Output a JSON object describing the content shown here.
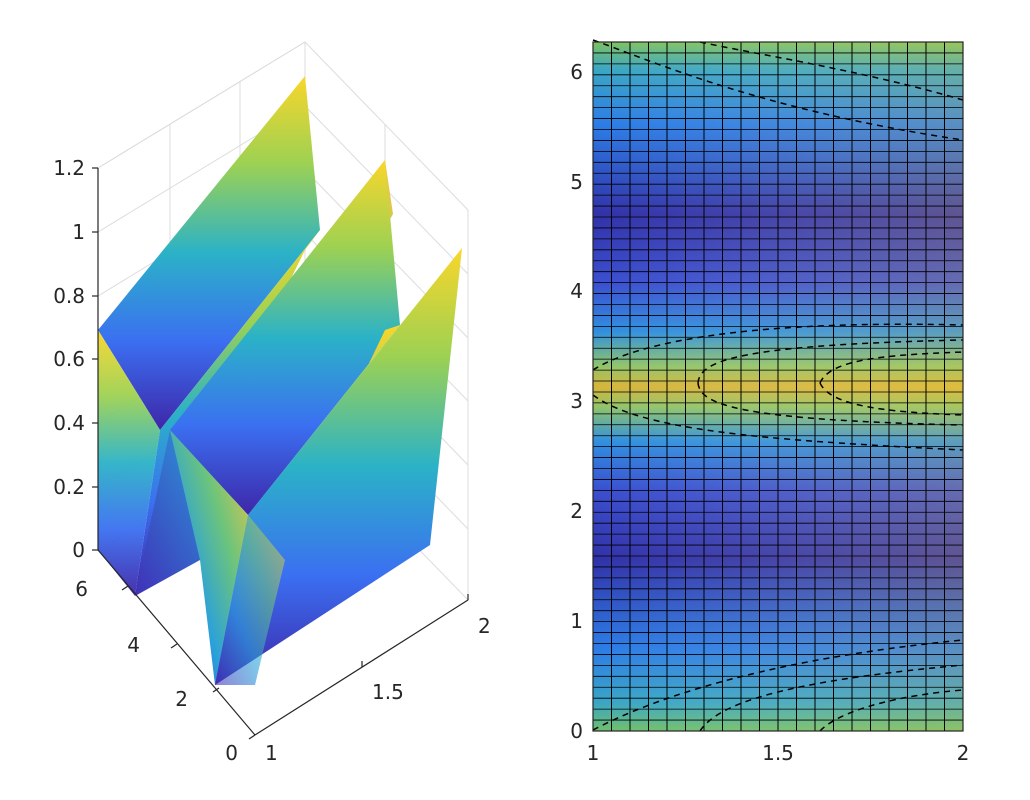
{
  "chart_data": [
    {
      "type": "surface",
      "title": "",
      "xlabel": "",
      "ylabel": "",
      "zlabel": "",
      "xlim": [
        1,
        2
      ],
      "ylim": [
        0,
        6.2832
      ],
      "zlim": [
        0,
        1.2
      ],
      "x_ticks": [
        "1",
        "1.5",
        "2"
      ],
      "y_ticks": [
        "0",
        "2",
        "4",
        "6"
      ],
      "z_ticks": [
        "0",
        "0.2",
        "0.4",
        "0.6",
        "0.8",
        "1",
        "1.2"
      ],
      "colormap": "parula",
      "grid": true,
      "description_of_function": "z = x * |cos(y)|^0.5-like ridges peaking at y = 0, pi, 2pi",
      "z_at_x1": [
        0.68,
        0.0,
        0.6,
        0.0,
        0.68
      ],
      "z_at_x2": [
        1.2,
        0.0,
        1.1,
        0.0,
        1.2
      ],
      "y_samples": [
        0,
        1.5708,
        3.1416,
        4.7124,
        6.2832
      ]
    },
    {
      "type": "heatmap",
      "title": "",
      "xlabel": "",
      "ylabel": "",
      "xlim": [
        1,
        2
      ],
      "ylim": [
        0,
        6.2832
      ],
      "x_ticks": [
        "1",
        "1.5",
        "2"
      ],
      "y_ticks": [
        "0",
        "1",
        "2",
        "3",
        "4",
        "5",
        "6"
      ],
      "colormap": "parula",
      "contours": "dashed black",
      "grid": "black mesh lines"
    }
  ]
}
